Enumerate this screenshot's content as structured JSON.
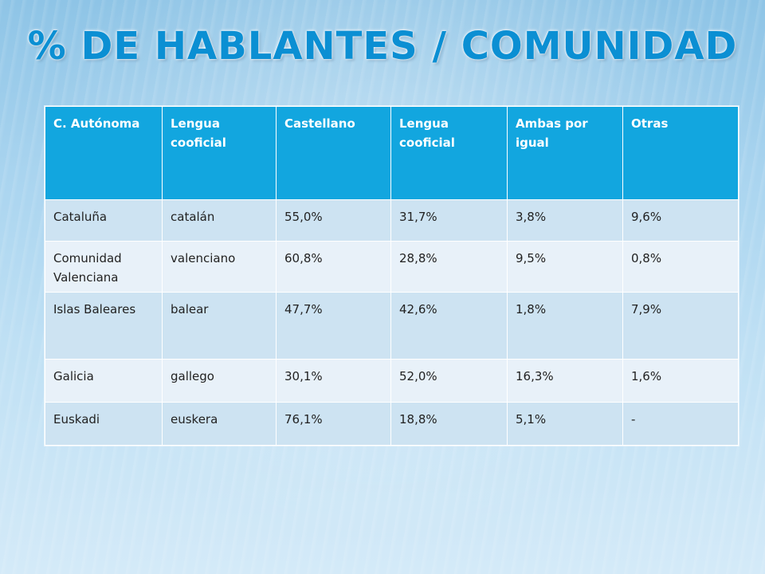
{
  "slide": {
    "title": "% DE HABLANTES  / COMUNIDAD"
  },
  "table": {
    "headers": [
      "C. Autónoma",
      "Lengua cooficial",
      "Castellano",
      "Lengua cooficial",
      "Ambas por igual",
      "Otras"
    ],
    "rows": [
      [
        "Cataluña",
        "catalán",
        "55,0%",
        "31,7%",
        "3,8%",
        "9,6%"
      ],
      [
        "Comunidad Valenciana",
        "valenciano",
        "60,8%",
        "28,8%",
        "9,5%",
        "0,8%"
      ],
      [
        "Islas Baleares",
        "balear",
        "47,7%",
        "42,6%",
        "1,8%",
        "7,9%"
      ],
      [
        "Galicia",
        "gallego",
        "30,1%",
        "52,0%",
        "16,3%",
        "1,6%"
      ],
      [
        "Euskadi",
        "euskera",
        "76,1%",
        "18,8%",
        "5,1%",
        "-"
      ]
    ]
  },
  "colors": {
    "header_bg": "#12a6df",
    "row_odd_bg": "#cde3f2",
    "row_even_bg": "#e8f1f9",
    "title_color": "#0b8fd3"
  }
}
